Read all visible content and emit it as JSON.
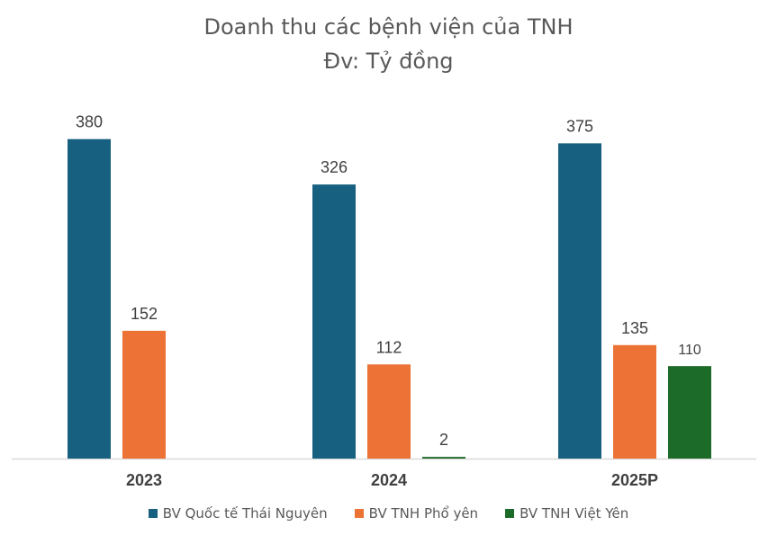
{
  "chart_data": {
    "type": "bar",
    "title": "Doanh thu các bệnh viện của TNH",
    "subtitle": "Đv: Tỷ đồng",
    "categories": [
      "2023",
      "2024",
      "2025P"
    ],
    "series": [
      {
        "name": "BV Quốc tế Thái Nguyên",
        "color": "#17607f",
        "values": [
          380,
          326,
          375
        ],
        "labels": [
          "380",
          "326",
          "375"
        ]
      },
      {
        "name": "BV TNH Phổ yên",
        "color": "#ec7235",
        "values": [
          152,
          112,
          135
        ],
        "labels": [
          "152",
          "112",
          "135"
        ]
      },
      {
        "name": "BV TNH Việt Yên",
        "color": "#1d6b28",
        "values": [
          null,
          2,
          110
        ],
        "labels": [
          null,
          "2",
          "110"
        ]
      }
    ],
    "ylim": [
      0,
      380
    ],
    "grid": false,
    "legend_position": "bottom"
  }
}
